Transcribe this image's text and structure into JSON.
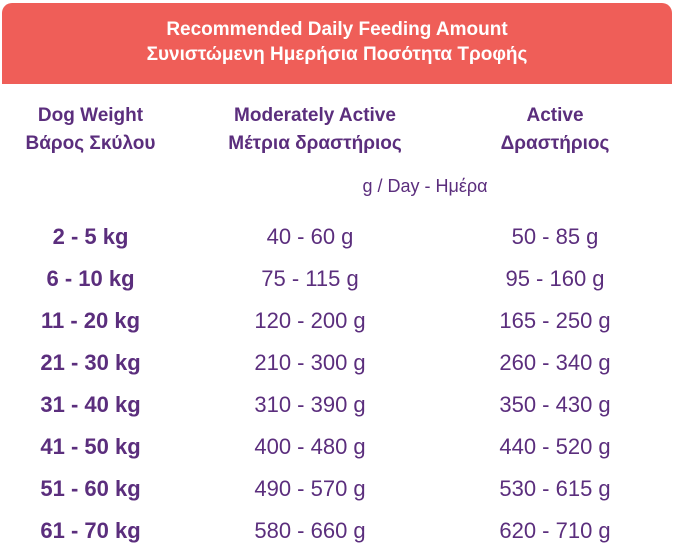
{
  "header": {
    "title_en": "Recommended Daily Feeding Amount",
    "title_el": "Συνιστώμενη Ημερήσια Ποσότητα Τροφής"
  },
  "columns": {
    "weight": {
      "en": "Dog Weight",
      "el": "Βάρος Σκύλου"
    },
    "moderate": {
      "en": "Moderately Active",
      "el": "Μέτρια δραστήριος"
    },
    "active": {
      "en": "Active",
      "el": "Δραστήριος"
    }
  },
  "unit": "g / Day - Ημέρα",
  "rows": [
    {
      "weight": "2 - 5 kg",
      "moderate": "40 - 60 g",
      "active": "50 - 85 g"
    },
    {
      "weight": "6 - 10 kg",
      "moderate": "75 - 115 g",
      "active": "95 - 160 g"
    },
    {
      "weight": "11 - 20 kg",
      "moderate": "120 - 200 g",
      "active": "165 - 250 g"
    },
    {
      "weight": "21 - 30 kg",
      "moderate": "210 - 300 g",
      "active": "260 - 340 g"
    },
    {
      "weight": "31 - 40 kg",
      "moderate": "310 - 390 g",
      "active": "350 - 430 g"
    },
    {
      "weight": "41 - 50 kg",
      "moderate": "400 - 480 g",
      "active": "440 - 520 g"
    },
    {
      "weight": "51 - 60 kg",
      "moderate": "490 - 570 g",
      "active": "530 - 615 g"
    },
    {
      "weight": "61 - 70 kg",
      "moderate": "580 - 660 g",
      "active": "620 - 710 g"
    }
  ],
  "colors": {
    "header_bg": "#ef5e58",
    "text": "#5b2e7d"
  }
}
